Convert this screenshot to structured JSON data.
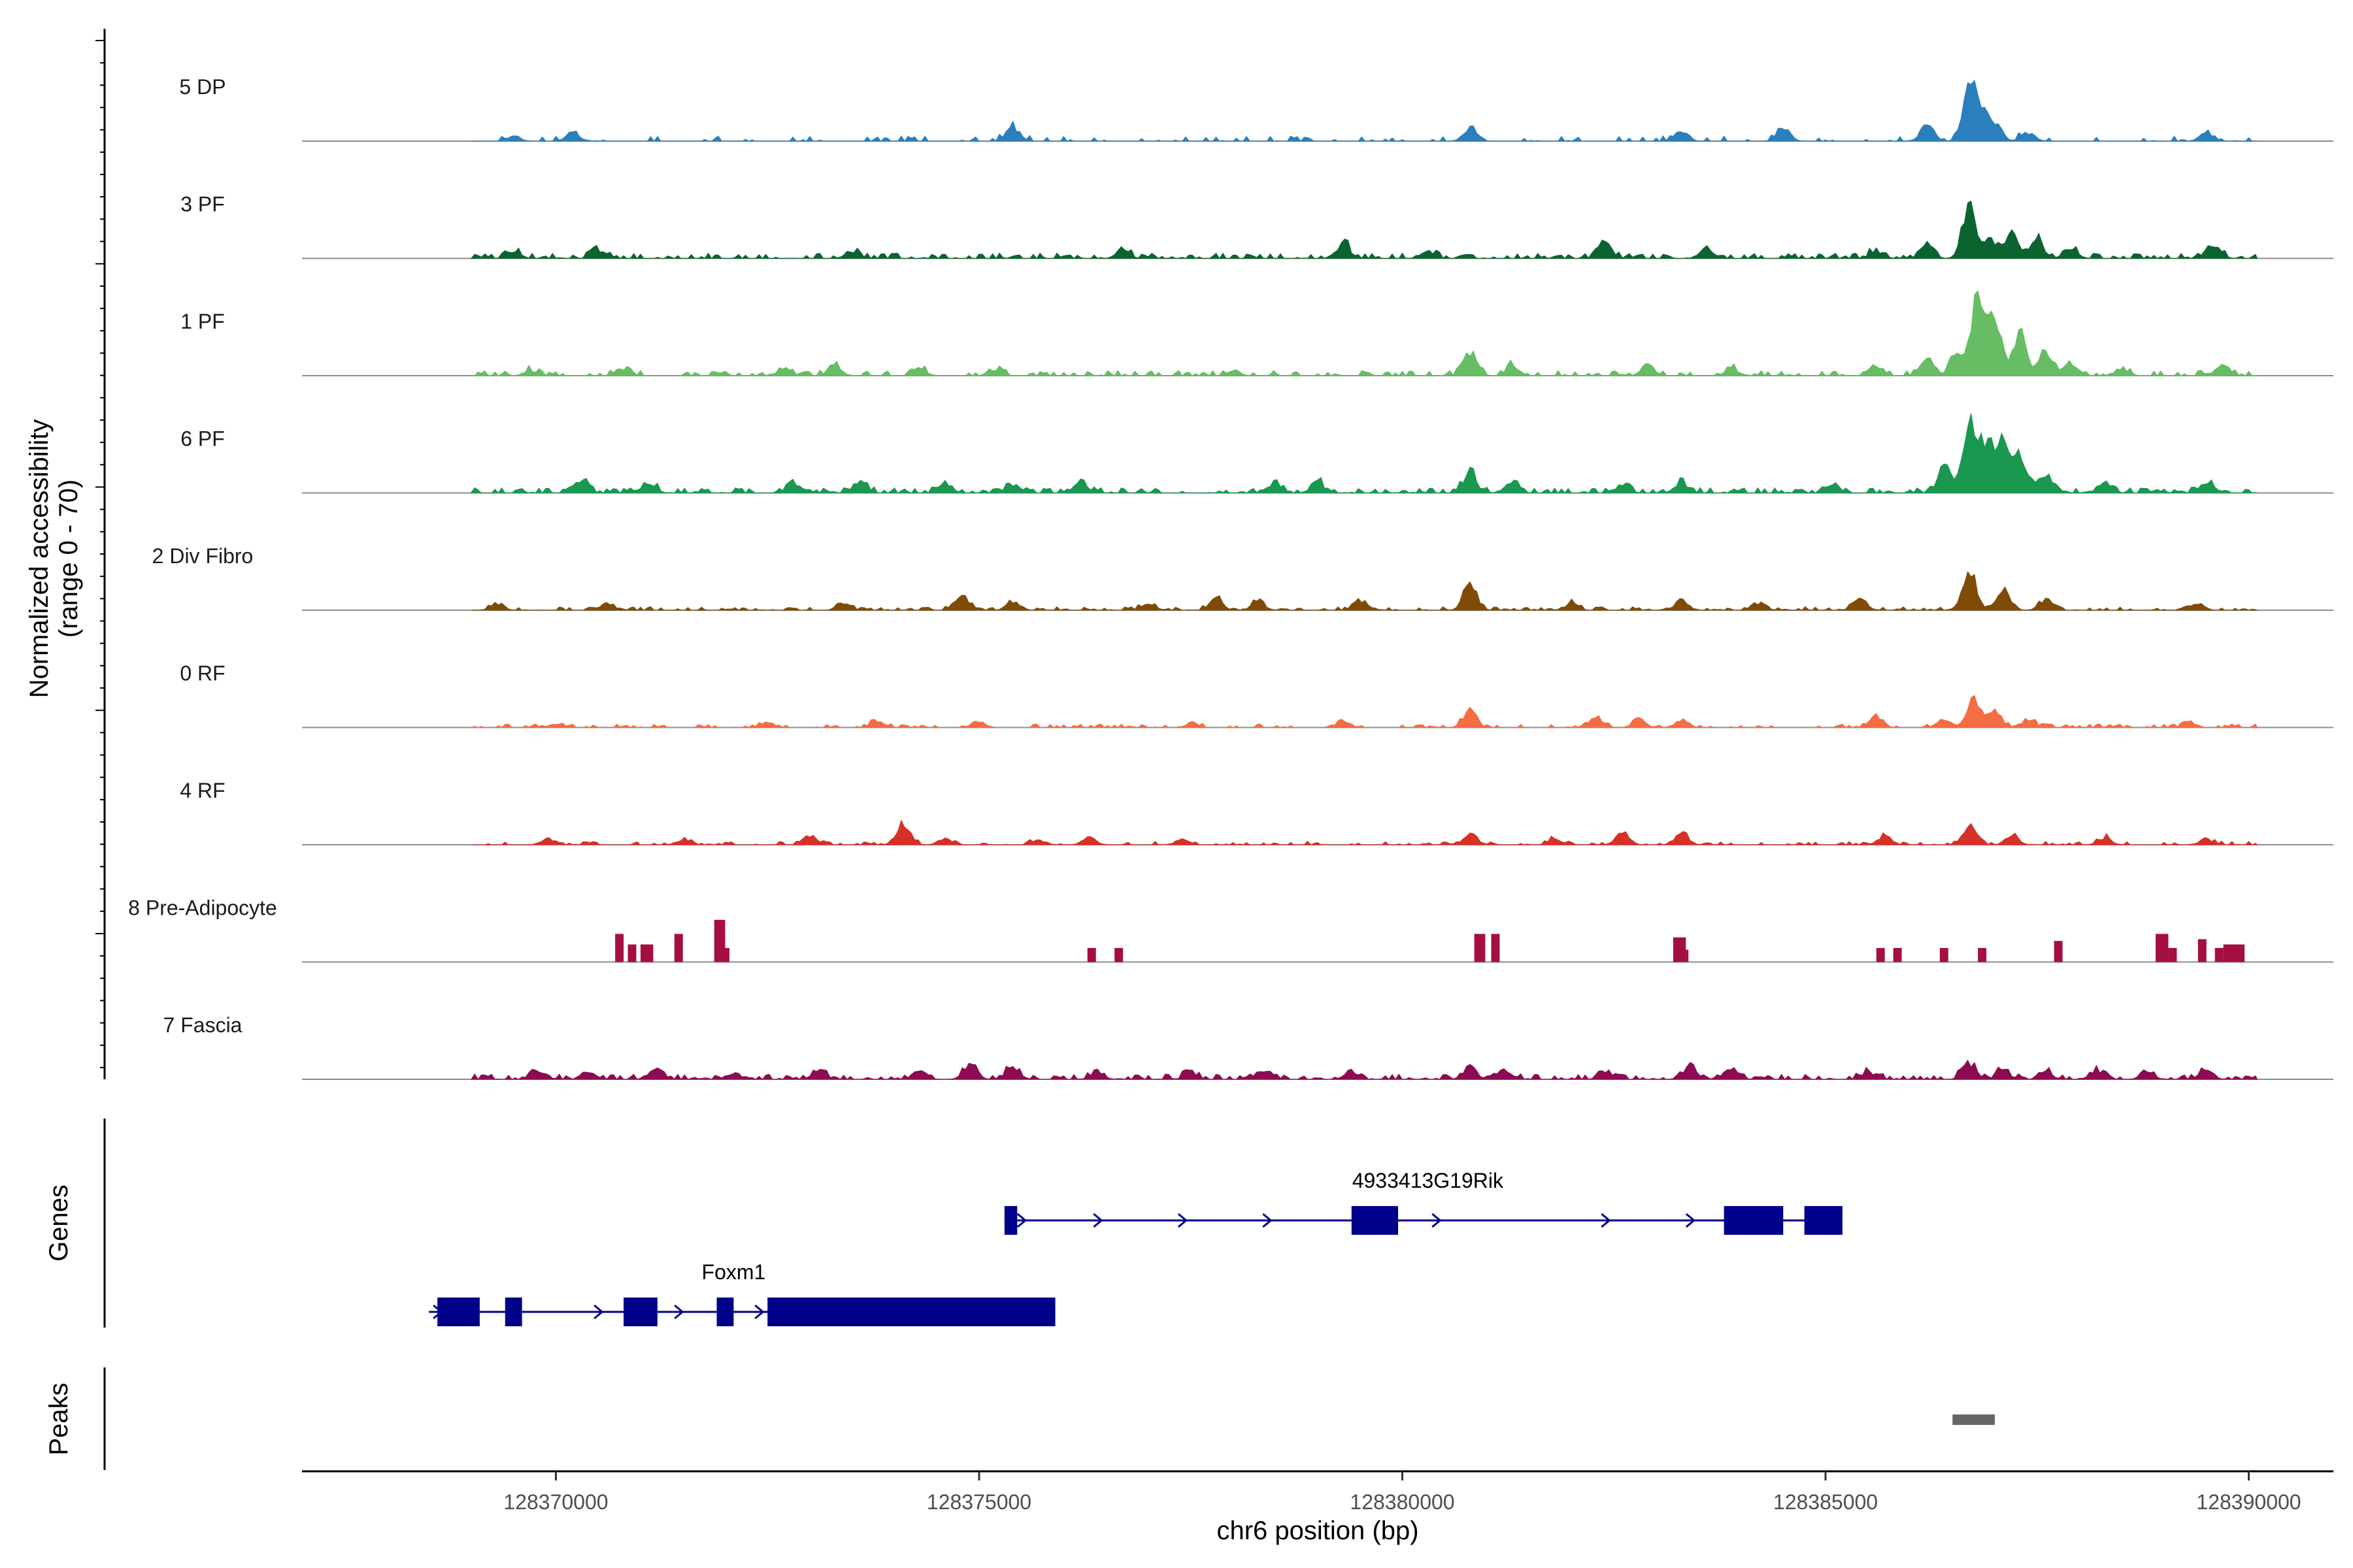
{
  "chart_data": {
    "type": "area",
    "subtype": "genome coverage track",
    "coverage_ylabel_line1": "Normalized accessibility",
    "coverage_ylabel_line2": "(range 0 - 70)",
    "coverage_range": [
      0,
      70
    ],
    "genes_ylabel": "Genes",
    "peaks_ylabel": "Peaks",
    "xlabel": "chr6 position (bp)",
    "xlim": [
      128367000,
      128391000
    ],
    "data_extent": [
      128369000,
      128390100
    ],
    "x_ticks": [
      128370000,
      128375000,
      128380000,
      128385000,
      128390000
    ],
    "x_tick_labels": [
      "128370000",
      "128375000",
      "128380000",
      "128385000",
      "128390000"
    ],
    "tracks": [
      {
        "name": "5 DP",
        "color": "#2b7fbd",
        "seed": 11,
        "density": 0.22,
        "base": 3,
        "peaks": [
          [
            128369500,
            3
          ],
          [
            128370200,
            5
          ],
          [
            128375400,
            8
          ],
          [
            128380800,
            8
          ],
          [
            128383300,
            6
          ],
          [
            128384500,
            8
          ],
          [
            128386200,
            10
          ],
          [
            128386700,
            30
          ],
          [
            128386850,
            14
          ],
          [
            128387000,
            10
          ],
          [
            128387400,
            5
          ],
          [
            128389500,
            5
          ]
        ]
      },
      {
        "name": "3 PF",
        "color": "#0b6430",
        "seed": 23,
        "density": 0.55,
        "base": 3,
        "peaks": [
          [
            128369500,
            4
          ],
          [
            128370500,
            5
          ],
          [
            128373500,
            4
          ],
          [
            128376700,
            5
          ],
          [
            128379300,
            8
          ],
          [
            128380300,
            4
          ],
          [
            128382400,
            8
          ],
          [
            128383600,
            6
          ],
          [
            128385600,
            4
          ],
          [
            128386200,
            7
          ],
          [
            128386700,
            28
          ],
          [
            128386950,
            12
          ],
          [
            128387200,
            12
          ],
          [
            128387500,
            10
          ],
          [
            128387900,
            5
          ],
          [
            128389600,
            6
          ]
        ]
      },
      {
        "name": "1 PF",
        "color": "#66bd63",
        "seed": 37,
        "density": 0.45,
        "base": 3,
        "peaks": [
          [
            128369700,
            3
          ],
          [
            128370800,
            3
          ],
          [
            128372700,
            4
          ],
          [
            128373300,
            5
          ],
          [
            128374300,
            4
          ],
          [
            128375200,
            3
          ],
          [
            128378000,
            3
          ],
          [
            128380800,
            14
          ],
          [
            128381300,
            5
          ],
          [
            128382900,
            6
          ],
          [
            128383900,
            4
          ],
          [
            128385600,
            6
          ],
          [
            128386200,
            10
          ],
          [
            128386550,
            12
          ],
          [
            128386800,
            50
          ],
          [
            128387000,
            30
          ],
          [
            128387300,
            24
          ],
          [
            128387600,
            14
          ],
          [
            128387900,
            8
          ],
          [
            128388500,
            4
          ],
          [
            128389700,
            4
          ]
        ]
      },
      {
        "name": "6 PF",
        "color": "#1a9850",
        "seed": 51,
        "density": 0.6,
        "base": 3,
        "peaks": [
          [
            128370300,
            6
          ],
          [
            128371100,
            5
          ],
          [
            128372800,
            6
          ],
          [
            128373600,
            6
          ],
          [
            128374600,
            5
          ],
          [
            128375400,
            5
          ],
          [
            128376200,
            6
          ],
          [
            128378500,
            5
          ],
          [
            128379000,
            6
          ],
          [
            128380800,
            12
          ],
          [
            128381300,
            6
          ],
          [
            128382600,
            5
          ],
          [
            128383300,
            6
          ],
          [
            128385100,
            4
          ],
          [
            128386400,
            14
          ],
          [
            128386700,
            36
          ],
          [
            128386900,
            30
          ],
          [
            128387100,
            28
          ],
          [
            128387300,
            20
          ],
          [
            128387600,
            10
          ],
          [
            128388300,
            5
          ],
          [
            128389500,
            6
          ]
        ]
      },
      {
        "name": "2 Div Fibro",
        "color": "#7f4c07",
        "seed": 67,
        "density": 0.55,
        "base": 2,
        "peaks": [
          [
            128369300,
            3
          ],
          [
            128370600,
            4
          ],
          [
            128373400,
            4
          ],
          [
            128374800,
            8
          ],
          [
            128375400,
            5
          ],
          [
            128377000,
            4
          ],
          [
            128377800,
            6
          ],
          [
            128378300,
            5
          ],
          [
            128379500,
            5
          ],
          [
            128380800,
            16
          ],
          [
            128382000,
            4
          ],
          [
            128383300,
            5
          ],
          [
            128384200,
            4
          ],
          [
            128385400,
            7
          ],
          [
            128386700,
            22
          ],
          [
            128387100,
            12
          ],
          [
            128387600,
            6
          ],
          [
            128389400,
            4
          ]
        ]
      },
      {
        "name": "0 RF",
        "color": "#f46d43",
        "seed": 79,
        "density": 0.4,
        "base": 2,
        "peaks": [
          [
            128370000,
            2
          ],
          [
            128372500,
            3
          ],
          [
            128373800,
            4
          ],
          [
            128375000,
            3
          ],
          [
            128377500,
            2
          ],
          [
            128379300,
            3
          ],
          [
            128380800,
            9
          ],
          [
            128382300,
            5
          ],
          [
            128382800,
            4
          ],
          [
            128383300,
            4
          ],
          [
            128385600,
            6
          ],
          [
            128386400,
            5
          ],
          [
            128386750,
            16
          ],
          [
            128387000,
            9
          ],
          [
            128387400,
            5
          ],
          [
            128389300,
            3
          ]
        ]
      },
      {
        "name": "4 RF",
        "color": "#d73027",
        "seed": 91,
        "density": 0.35,
        "base": 2,
        "peaks": [
          [
            128368700,
            3
          ],
          [
            128369900,
            3
          ],
          [
            128371500,
            3
          ],
          [
            128373000,
            5
          ],
          [
            128374100,
            13
          ],
          [
            128374600,
            4
          ],
          [
            128375700,
            3
          ],
          [
            128376300,
            4
          ],
          [
            128377400,
            3
          ],
          [
            128380800,
            7
          ],
          [
            128381800,
            3
          ],
          [
            128382600,
            7
          ],
          [
            128383300,
            7
          ],
          [
            128385700,
            5
          ],
          [
            128386700,
            11
          ],
          [
            128387200,
            5
          ],
          [
            128388300,
            4
          ],
          [
            128389500,
            3
          ]
        ]
      },
      {
        "name": "8 Pre-Adipocyte",
        "color": "#a50f3f",
        "seed": 0,
        "density": 0,
        "base": 0,
        "blocks": [
          [
            128370700,
            128370800,
            16
          ],
          [
            128370850,
            128370950,
            10
          ],
          [
            128371000,
            128371150,
            10
          ],
          [
            128371400,
            128371500,
            16
          ],
          [
            128371870,
            128372000,
            24
          ],
          [
            128372000,
            128372050,
            8
          ],
          [
            128376280,
            128376380,
            8
          ],
          [
            128376600,
            128376700,
            8
          ],
          [
            128380850,
            128380980,
            16
          ],
          [
            128381050,
            128381150,
            16
          ],
          [
            128383200,
            128383350,
            14
          ],
          [
            128383350,
            128383380,
            7
          ],
          [
            128385600,
            128385700,
            8
          ],
          [
            128385800,
            128385900,
            8
          ],
          [
            128386350,
            128386450,
            8
          ],
          [
            128386800,
            128386900,
            8
          ],
          [
            128387700,
            128387800,
            12
          ],
          [
            128388900,
            128389050,
            16
          ],
          [
            128389050,
            128389150,
            8
          ],
          [
            128389400,
            128389500,
            13
          ],
          [
            128389600,
            128389700,
            8
          ],
          [
            128389700,
            128389950,
            10
          ]
        ]
      },
      {
        "name": "7 Fascia",
        "color": "#8c0b52",
        "seed": 103,
        "density": 0.62,
        "base": 3,
        "peaks": [
          [
            128368700,
            5
          ],
          [
            128369800,
            5
          ],
          [
            128370400,
            4
          ],
          [
            128371200,
            5
          ],
          [
            128372100,
            4
          ],
          [
            128373100,
            5
          ],
          [
            128374300,
            5
          ],
          [
            128374900,
            8
          ],
          [
            128375400,
            7
          ],
          [
            128376400,
            4
          ],
          [
            128377500,
            4
          ],
          [
            128378400,
            4
          ],
          [
            128379400,
            4
          ],
          [
            128380800,
            6
          ],
          [
            128381200,
            5
          ],
          [
            128382400,
            5
          ],
          [
            128383400,
            6
          ],
          [
            128383900,
            5
          ],
          [
            128385500,
            4
          ],
          [
            128386700,
            9
          ],
          [
            128387100,
            5
          ],
          [
            128387600,
            4
          ],
          [
            128388200,
            5
          ],
          [
            128388800,
            4
          ],
          [
            128389500,
            5
          ]
        ]
      }
    ],
    "genes": [
      {
        "name": "4933413G19Rik",
        "label_x": 128380300,
        "start": 128375300,
        "end": 128385100,
        "row": 0,
        "exons": [
          [
            128375300,
            128375450
          ],
          [
            128379400,
            128379950
          ],
          [
            128383800,
            128384500
          ],
          [
            128384750,
            128385200
          ]
        ],
        "arrows": [
          128375500,
          128376400,
          128377400,
          128378400,
          128380400,
          128382400,
          128383400
        ]
      },
      {
        "name": "Foxm1",
        "label_x": 128372100,
        "start": 128368500,
        "end": 128375900,
        "row": 1,
        "exons": [
          [
            128368600,
            128369100
          ],
          [
            128369400,
            128369600
          ],
          [
            128370800,
            128371200
          ],
          [
            128371900,
            128372100
          ],
          [
            128372500,
            128375900
          ]
        ],
        "arrows": [
          128368600,
          128370500,
          128371450,
          128372400
        ]
      }
    ],
    "peaks_track": [
      {
        "start": 128386500,
        "end": 128387000,
        "color": "#666666"
      }
    ]
  }
}
